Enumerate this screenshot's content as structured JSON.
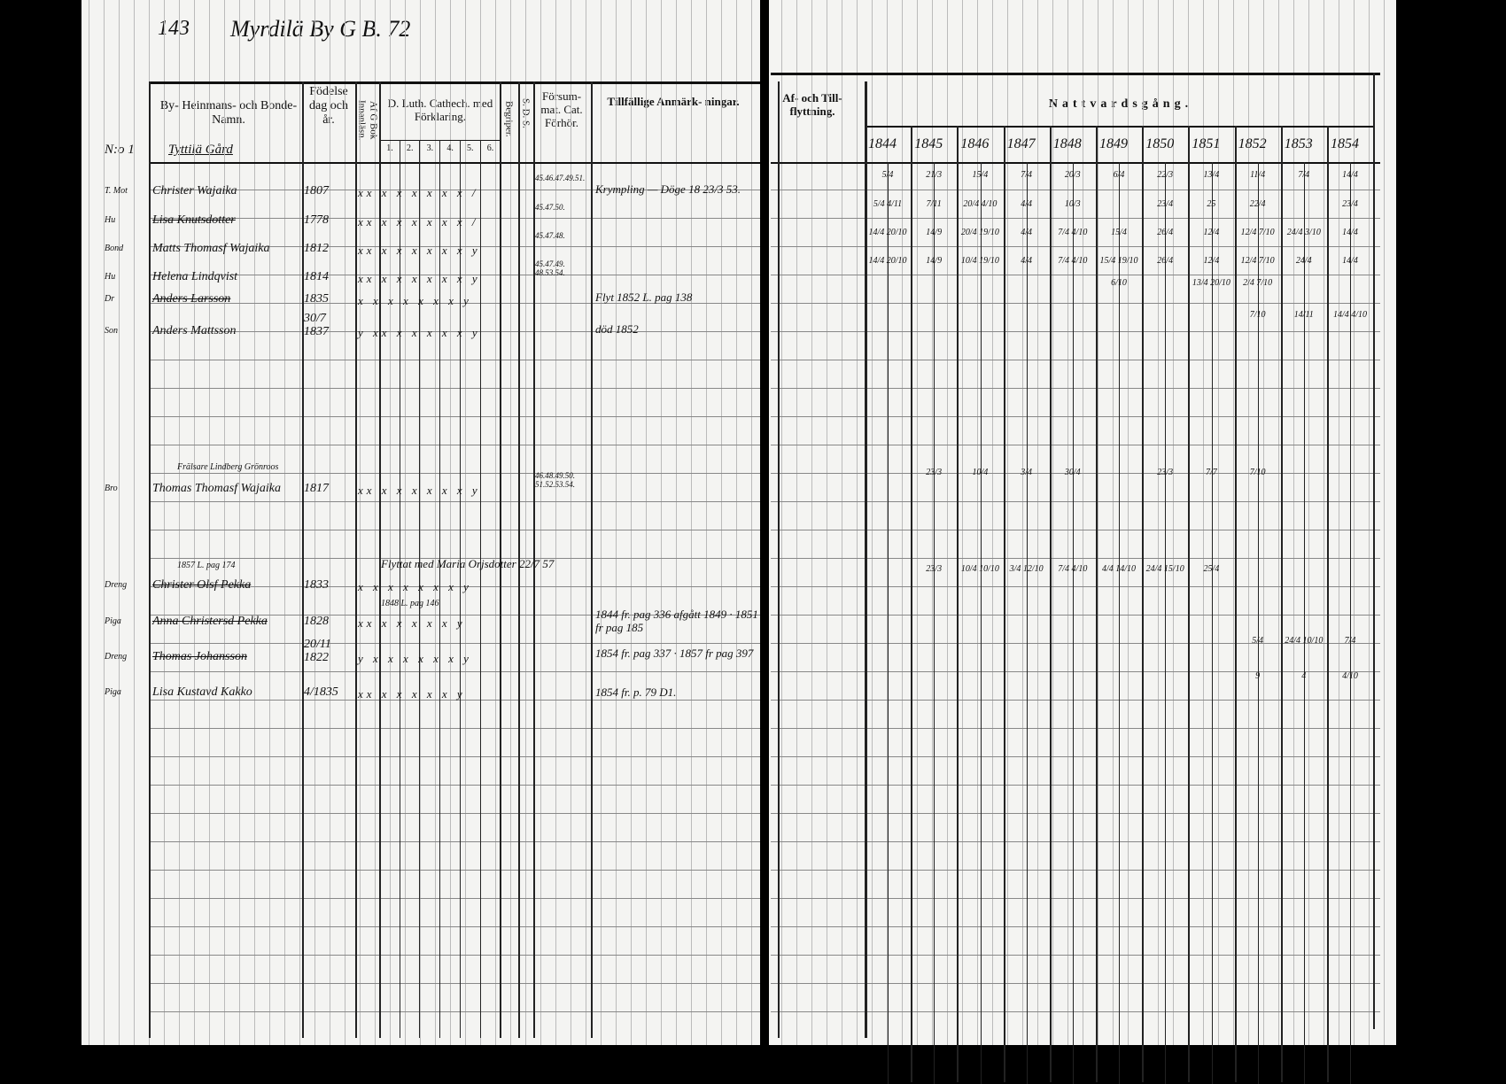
{
  "page_header": {
    "page_number": "143",
    "village_ref": "Myrdilä By G B. 72"
  },
  "left_columns": {
    "name": "By- Heinmans- och Bonde- Namn.",
    "birth": "Födelse dag och år.",
    "reading": "Af G Bok Innanläsn.",
    "catechism": "D. Luth. Cathech. med Förklaring.",
    "catechism_parts": [
      "1.",
      "2.",
      "3.",
      "4.",
      "5.",
      "6."
    ],
    "understanding": "Begriper.",
    "sds": "S. D. S.",
    "missed": "Försum- mat. Cat. Förhör.",
    "remarks": "Tillfällige Anmärk- ningar."
  },
  "right_columns": {
    "moves": "Af- och Till- flyttning.",
    "communion": "Nattvardsgång.",
    "years": [
      "1844",
      "1845",
      "1846",
      "1847",
      "1848",
      "1849",
      "1850",
      "1851",
      "1852",
      "1853",
      "1854"
    ]
  },
  "farm_heading": {
    "number": "N:o 1",
    "name": "Tyttilä Gård"
  },
  "rows": [
    {
      "role": "T. Mot",
      "name": "Christer Wajaika",
      "birth": "1807",
      "marks": "xx x x x x x x /",
      "missed": "45.46.47.49.51.",
      "remark": "Krympling — Döge 18 23/3 53.",
      "communion": [
        "5/4",
        "21/3",
        "15/4",
        "7/4",
        "20/3",
        "6/4",
        "22/3",
        "13/4",
        "11/4",
        "7/4",
        "14/4"
      ],
      "struck": false
    },
    {
      "role": "Hu",
      "name": "Lisa Knutsdotter",
      "birth": "1778",
      "marks": "xx x x x x x x /",
      "missed": "45.47.50.",
      "remark": "",
      "communion": [
        "5/4 4/11",
        "7/11",
        "20/4 4/10",
        "4/4",
        "10/3",
        "",
        "23/4",
        "25",
        "22/4",
        "",
        "23/4"
      ],
      "struck": true
    },
    {
      "role": "Bond",
      "name": "Matts Thomasf Wajaika",
      "birth": "1812",
      "marks": "xx x x x x x x y",
      "missed": "45.47.48.",
      "remark": "",
      "communion": [
        "14/4 20/10",
        "14/9",
        "20/4 19/10",
        "4/4",
        "7/4 4/10",
        "15/4",
        "26/4",
        "12/4",
        "12/4 7/10",
        "24/4 3/10",
        "14/4"
      ],
      "struck": false
    },
    {
      "role": "Hu",
      "name": "Helena Lindqvist",
      "birth": "1814",
      "marks": "xx x x x x x x y",
      "missed": "45.47.49. 48.53.54.",
      "remark": "",
      "communion": [
        "14/4 20/10",
        "14/9",
        "10/4 19/10",
        "4/4",
        "7/4 4/10",
        "15/4 19/10",
        "26/4",
        "12/4",
        "12/4 7/10",
        "24/4",
        "14/4"
      ],
      "struck": false
    },
    {
      "role": "Dr",
      "name": "Anders Larsson",
      "birth": "1835",
      "marks": "x x x x x x x y",
      "missed": "",
      "remark": "Flyt 1852 L. pag 138",
      "communion": [
        "",
        "",
        "",
        "",
        "",
        "6/10",
        "",
        "13/4 20/10",
        "2/4 7/10",
        "",
        ""
      ],
      "struck": true
    },
    {
      "role": "Son",
      "name": "Anders Mattsson",
      "birth": "30/7 1837",
      "marks": "y xx x x x x x y",
      "missed": "",
      "remark": "död 1852",
      "communion": [
        "",
        "",
        "",
        "",
        "",
        "",
        "",
        "",
        "7/10",
        "14/11",
        "14/4 4/10"
      ],
      "struck": false
    },
    {
      "role": "Bro",
      "name": "Thomas Thomasf Wajaika",
      "birth": "1817",
      "note_above": "Frälsare Lindberg Grönroos",
      "marks": "xx x x x x x x y",
      "missed": "46.48.49.50. 51.52.53.54.",
      "remark": "",
      "communion": [
        "",
        "23/3",
        "10/4",
        "3/4",
        "30/4",
        "",
        "23/3",
        "7/7",
        "7/10",
        "",
        ""
      ],
      "struck": false
    },
    {
      "role": "Dreng",
      "name": "Christer Olsf Pekka",
      "birth": "1833",
      "note_above": "1857 L. pag 174",
      "marks": "x x x x x x x y",
      "missed": "",
      "remark": "Flyttat med Maria Orjsdotter 22/7 57",
      "communion": [
        "",
        "23/3",
        "10/4 10/10",
        "3/4 12/10",
        "7/4 4/10",
        "4/4 14/10",
        "24/4 15/10",
        "25/4",
        "",
        "",
        ""
      ],
      "struck": true
    },
    {
      "role": "Piga",
      "name": "Anna Christersd Pekka",
      "birth": "1828",
      "note_above": "1848 L. pag 146",
      "marks": "xx x x x x x y",
      "missed": "",
      "remark": "1844 fr. pag 336 afgått 1849 · 1851 fr pag 185",
      "communion": [
        "",
        "",
        "",
        "",
        "",
        "",
        "",
        "",
        "",
        "",
        ""
      ],
      "struck": true
    },
    {
      "role": "Dreng",
      "name": "Thomas Johansson",
      "birth": "20/11 1822",
      "marks": "y x x x x x x y",
      "missed": "",
      "remark": "1854 fr. pag 337 · 1857 fr pag 397",
      "communion": [
        "",
        "",
        "",
        "",
        "",
        "",
        "",
        "",
        "5/4",
        "24/4 10/10",
        "7/4"
      ],
      "struck": true
    },
    {
      "role": "Piga",
      "name": "Lisa Kustavd Kakko",
      "birth": "4/1835",
      "marks": "xx x x x x x y",
      "missed": "",
      "remark": "1854 fr. p. 79 D1.",
      "communion": [
        "",
        "",
        "",
        "",
        "",
        "",
        "",
        "",
        "9",
        "4",
        "4/10"
      ],
      "struck": false
    }
  ]
}
